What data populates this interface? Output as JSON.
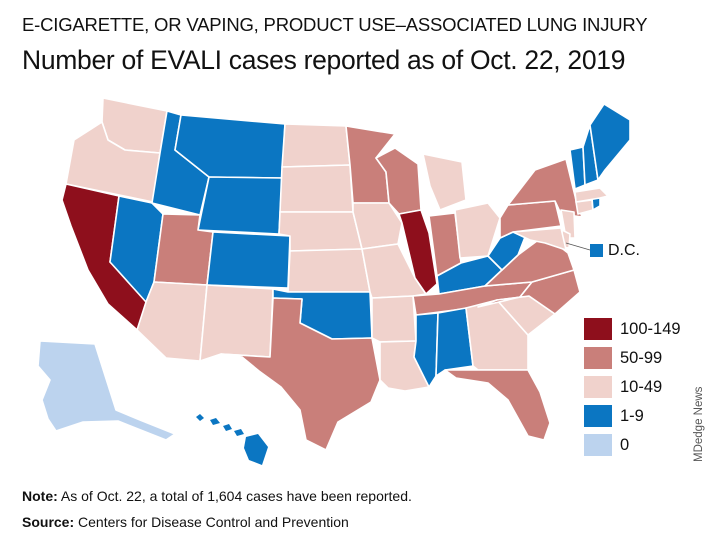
{
  "header": {
    "kicker": "E-CIGARETTE, OR VAPING, PRODUCT USE–ASSOCIATED LUNG INJURY",
    "title": "Number of EVALI cases reported as of Oct. 22, 2019"
  },
  "colors": {
    "cat_100_149": "#8e0f1c",
    "cat_50_99": "#c97f7a",
    "cat_10_49": "#f0d2cc",
    "cat_1_9": "#0b76c2",
    "cat_0": "#bcd3ee",
    "border": "#ffffff"
  },
  "legend": [
    {
      "label": "100-149",
      "color": "#8e0f1c"
    },
    {
      "label": "50-99",
      "color": "#c97f7a"
    },
    {
      "label": "10-49",
      "color": "#f0d2cc"
    },
    {
      "label": "1-9",
      "color": "#0b76c2"
    },
    {
      "label": "0",
      "color": "#bcd3ee"
    }
  ],
  "dc": {
    "label": "D.C.",
    "category": "1-9"
  },
  "states": {
    "WA": "10-49",
    "OR": "10-49",
    "CA": "100-149",
    "NV": "1-9",
    "ID": "1-9",
    "MT": "1-9",
    "WY": "1-9",
    "UT": "50-99",
    "AZ": "10-49",
    "CO": "1-9",
    "NM": "10-49",
    "ND": "10-49",
    "SD": "10-49",
    "NE": "10-49",
    "KS": "10-49",
    "OK": "1-9",
    "TX": "50-99",
    "MN": "50-99",
    "IA": "10-49",
    "MO": "10-49",
    "AR": "10-49",
    "LA": "10-49",
    "WI": "50-99",
    "IL": "100-149",
    "MI": "10-49",
    "IN": "50-99",
    "OH": "10-49",
    "KY": "1-9",
    "TN": "50-99",
    "MS": "1-9",
    "AL": "1-9",
    "GA": "10-49",
    "FL": "50-99",
    "SC": "10-49",
    "NC": "50-99",
    "VA": "50-99",
    "WV": "1-9",
    "PA": "50-99",
    "NY": "50-99",
    "NJ": "10-49",
    "DE": "10-49",
    "MD": "10-49",
    "CT": "10-49",
    "RI": "1-9",
    "MA": "10-49",
    "VT": "1-9",
    "NH": "1-9",
    "ME": "1-9",
    "AK": "0",
    "HI": "1-9"
  },
  "footer": {
    "note_label": "Note:",
    "note_text": " As of Oct. 22, a total of 1,604 cases have been reported.",
    "source_label": "Source:",
    "source_text": " Centers for Disease Control and Prevention"
  },
  "credit": "MDedge News"
}
